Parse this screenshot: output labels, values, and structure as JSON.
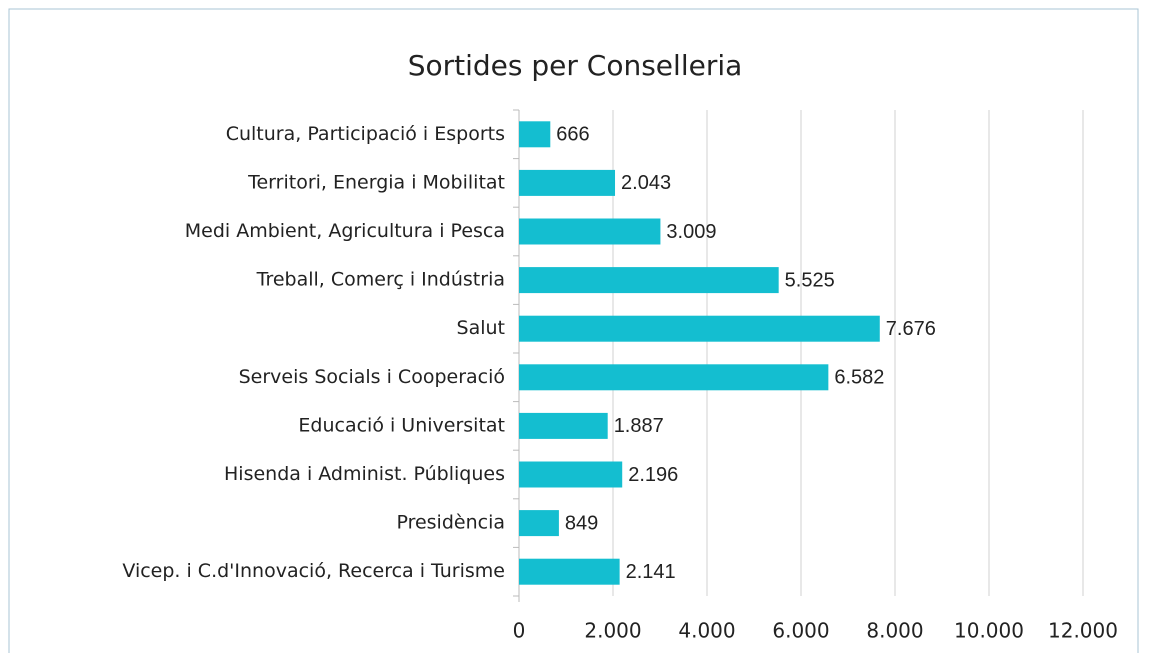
{
  "chart_data": {
    "type": "bar",
    "orientation": "horizontal",
    "title": "Sortides per Conselleria",
    "categories": [
      "Cultura, Participació i Esports",
      "Territori, Energia i Mobilitat",
      "Medi Ambient, Agricultura i Pesca",
      "Treball, Comerç i Indústria",
      "Salut",
      "Serveis Socials i Cooperació",
      "Educació i Universitat",
      "Hisenda i Administ. Públiques",
      "Presidència",
      "Vicep. i C.d'Innovació, Recerca i Turisme"
    ],
    "values": [
      666,
      2043,
      3009,
      5525,
      7676,
      6582,
      1887,
      2196,
      849,
      2141
    ],
    "value_labels": [
      "666",
      "2.043",
      "3.009",
      "5.525",
      "7.676",
      "6.582",
      "1.887",
      "2.196",
      "849",
      "2.141"
    ],
    "color": "#14bed0",
    "xlim": [
      0,
      12000
    ],
    "xticks": [
      0,
      {
        "value": 2000,
        "label": "2.000"
      },
      {
        "value": 4000,
        "label": "4.000"
      },
      {
        "value": 6000,
        "label": "6.000"
      },
      {
        "value": 8000,
        "label": "8.000"
      },
      {
        "value": 10000,
        "label": "10.000"
      },
      {
        "value": 12000,
        "label": "12.000"
      }
    ],
    "grid": true
  }
}
